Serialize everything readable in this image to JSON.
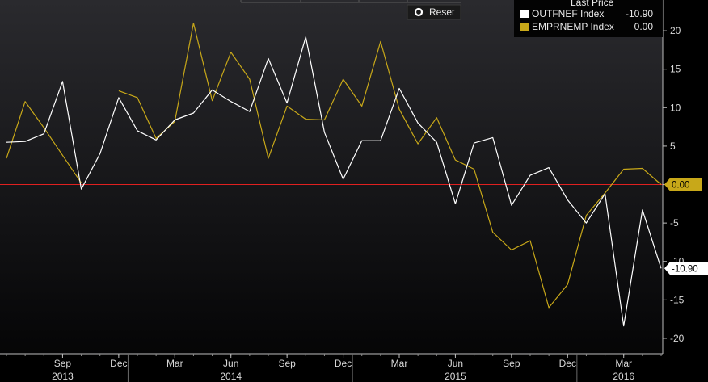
{
  "chart_data": {
    "type": "line",
    "ylim": [
      -22,
      24
    ],
    "yticks": [
      -20,
      -15,
      -10,
      -5,
      0,
      5,
      10,
      15,
      20
    ],
    "ytick_labels": [
      "-20",
      "-15",
      "-10",
      "-5",
      "0",
      "5",
      "10",
      "15",
      "20"
    ],
    "x_start_month": "2013-06",
    "x_end_month": "2016-05",
    "month_tick_labels": [
      {
        "month": "2013-09",
        "label": "Sep"
      },
      {
        "month": "2013-12",
        "label": "Dec"
      },
      {
        "month": "2014-03",
        "label": "Mar"
      },
      {
        "month": "2014-06",
        "label": "Jun"
      },
      {
        "month": "2014-09",
        "label": "Sep"
      },
      {
        "month": "2014-12",
        "label": "Dec"
      },
      {
        "month": "2015-03",
        "label": "Mar"
      },
      {
        "month": "2015-06",
        "label": "Jun"
      },
      {
        "month": "2015-09",
        "label": "Sep"
      },
      {
        "month": "2015-12",
        "label": "Dec"
      },
      {
        "month": "2016-03",
        "label": "Mar"
      }
    ],
    "year_labels": [
      {
        "month": "2013-09",
        "label": "2013"
      },
      {
        "month": "2014-06",
        "label": "2014"
      },
      {
        "month": "2015-06",
        "label": "2015"
      },
      {
        "month": "2016-03",
        "label": "2016"
      }
    ],
    "year_boundaries": [
      "2014-01",
      "2015-01",
      "2016-01"
    ],
    "x": [
      "2013-06",
      "2013-07",
      "2013-08",
      "2013-09",
      "2013-10",
      "2013-11",
      "2013-12",
      "2014-01",
      "2014-02",
      "2014-03",
      "2014-04",
      "2014-05",
      "2014-06",
      "2014-07",
      "2014-08",
      "2014-09",
      "2014-10",
      "2014-11",
      "2014-12",
      "2015-01",
      "2015-02",
      "2015-03",
      "2015-04",
      "2015-05",
      "2015-06",
      "2015-07",
      "2015-08",
      "2015-09",
      "2015-10",
      "2015-11",
      "2015-12",
      "2016-01",
      "2016-02",
      "2016-03",
      "2016-04",
      "2016-05"
    ],
    "series": [
      {
        "name": "OUTFNEF Index",
        "color": "#ffffff",
        "values": [
          5.5,
          5.6,
          6.6,
          13.4,
          -0.6,
          4.0,
          11.3,
          7.0,
          5.8,
          8.4,
          9.3,
          12.3,
          10.8,
          9.5,
          16.4,
          10.6,
          19.2,
          6.8,
          0.7,
          5.7,
          5.7,
          12.5,
          8.0,
          5.5,
          -2.5,
          5.4,
          6.1,
          -2.7,
          1.2,
          2.2,
          -2.0,
          -5.0,
          -1.2,
          -18.4,
          -3.3,
          -10.9
        ]
      },
      {
        "name": "EMPRNEMP Index",
        "color": "#c8a819",
        "values": [
          3.4,
          10.8,
          7.4,
          3.8,
          0.2,
          null,
          12.2,
          11.3,
          6.0,
          8.2,
          21.0,
          10.9,
          17.2,
          13.7,
          3.4,
          10.2,
          8.5,
          8.4,
          13.7,
          10.2,
          18.6,
          9.8,
          5.3,
          8.7,
          3.2,
          2.0,
          -6.2,
          -8.5,
          -7.3,
          -16.0,
          -13.0,
          -4.0,
          -1.1,
          2.0,
          2.1,
          0.0
        ]
      }
    ],
    "reference_line": {
      "value": 0,
      "color": "#e02020"
    },
    "legend": {
      "title": "Last Price",
      "placement": "top-right",
      "entries": [
        {
          "name": "OUTFNEF Index",
          "value": "-10.90",
          "color": "#ffffff"
        },
        {
          "name": "EMPRNEMP Index",
          "value": "0.00",
          "color": "#c8a819"
        }
      ]
    },
    "callouts": [
      {
        "text": "0.00",
        "value": 0.0,
        "bg": "#c8a819",
        "fg": "#000000"
      },
      {
        "text": "-10.90",
        "value": -10.9,
        "bg": "#ffffff",
        "fg": "#000000"
      }
    ],
    "grid": false
  },
  "toolbar": {
    "reset_label": "Reset"
  }
}
